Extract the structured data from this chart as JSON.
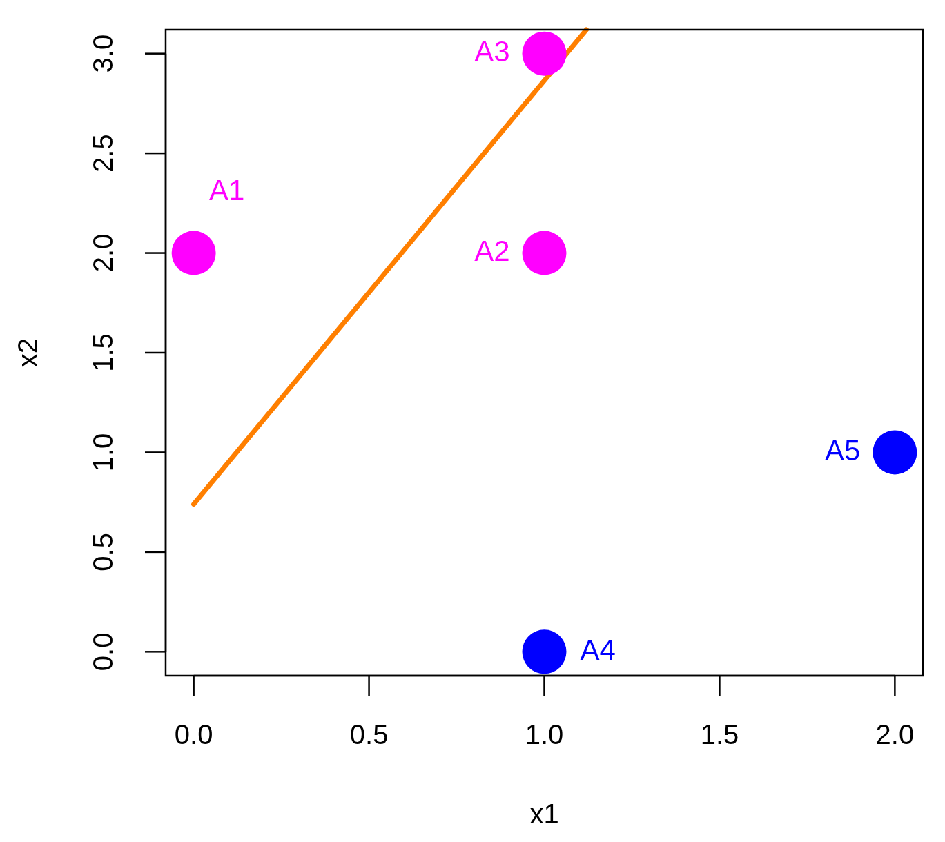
{
  "chart_data": {
    "type": "scatter",
    "xlabel": "x1",
    "ylabel": "x2",
    "xlim": [
      -0.08,
      2.08
    ],
    "ylim": [
      -0.12,
      3.12
    ],
    "xticks": [
      {
        "value": 0,
        "label": "0.0"
      },
      {
        "value": 0.5,
        "label": "0.5"
      },
      {
        "value": 1,
        "label": "1.0"
      },
      {
        "value": 1.5,
        "label": "1.5"
      },
      {
        "value": 2,
        "label": "2.0"
      }
    ],
    "yticks": [
      {
        "value": 0,
        "label": "0.0"
      },
      {
        "value": 0.5,
        "label": "0.5"
      },
      {
        "value": 1,
        "label": "1.0"
      },
      {
        "value": 1.5,
        "label": "1.5"
      },
      {
        "value": 2,
        "label": "2.0"
      },
      {
        "value": 2.5,
        "label": "2.5"
      },
      {
        "value": 3,
        "label": "3.0"
      }
    ],
    "grid": false,
    "legend": false,
    "series": [
      {
        "type": "line",
        "color": "#ff7f00",
        "x": [
          0,
          1.12
        ],
        "values": [
          0.74,
          3.12
        ]
      },
      {
        "color": "#ff00ff",
        "x": [
          0,
          1,
          1
        ],
        "values": [
          2,
          2,
          3
        ],
        "marker": "circle"
      },
      {
        "color": "#0000ff",
        "x": [
          1,
          2
        ],
        "values": [
          0,
          1
        ],
        "marker": "circle"
      }
    ],
    "annotations": [
      {
        "text": "A1",
        "x": 0,
        "y": 2
      },
      {
        "text": "A2",
        "x": 1,
        "y": 2
      },
      {
        "text": "A3",
        "x": 1,
        "y": 3
      },
      {
        "text": "A4",
        "x": 1,
        "y": 0
      },
      {
        "text": "A5",
        "x": 2,
        "y": 1
      }
    ]
  }
}
